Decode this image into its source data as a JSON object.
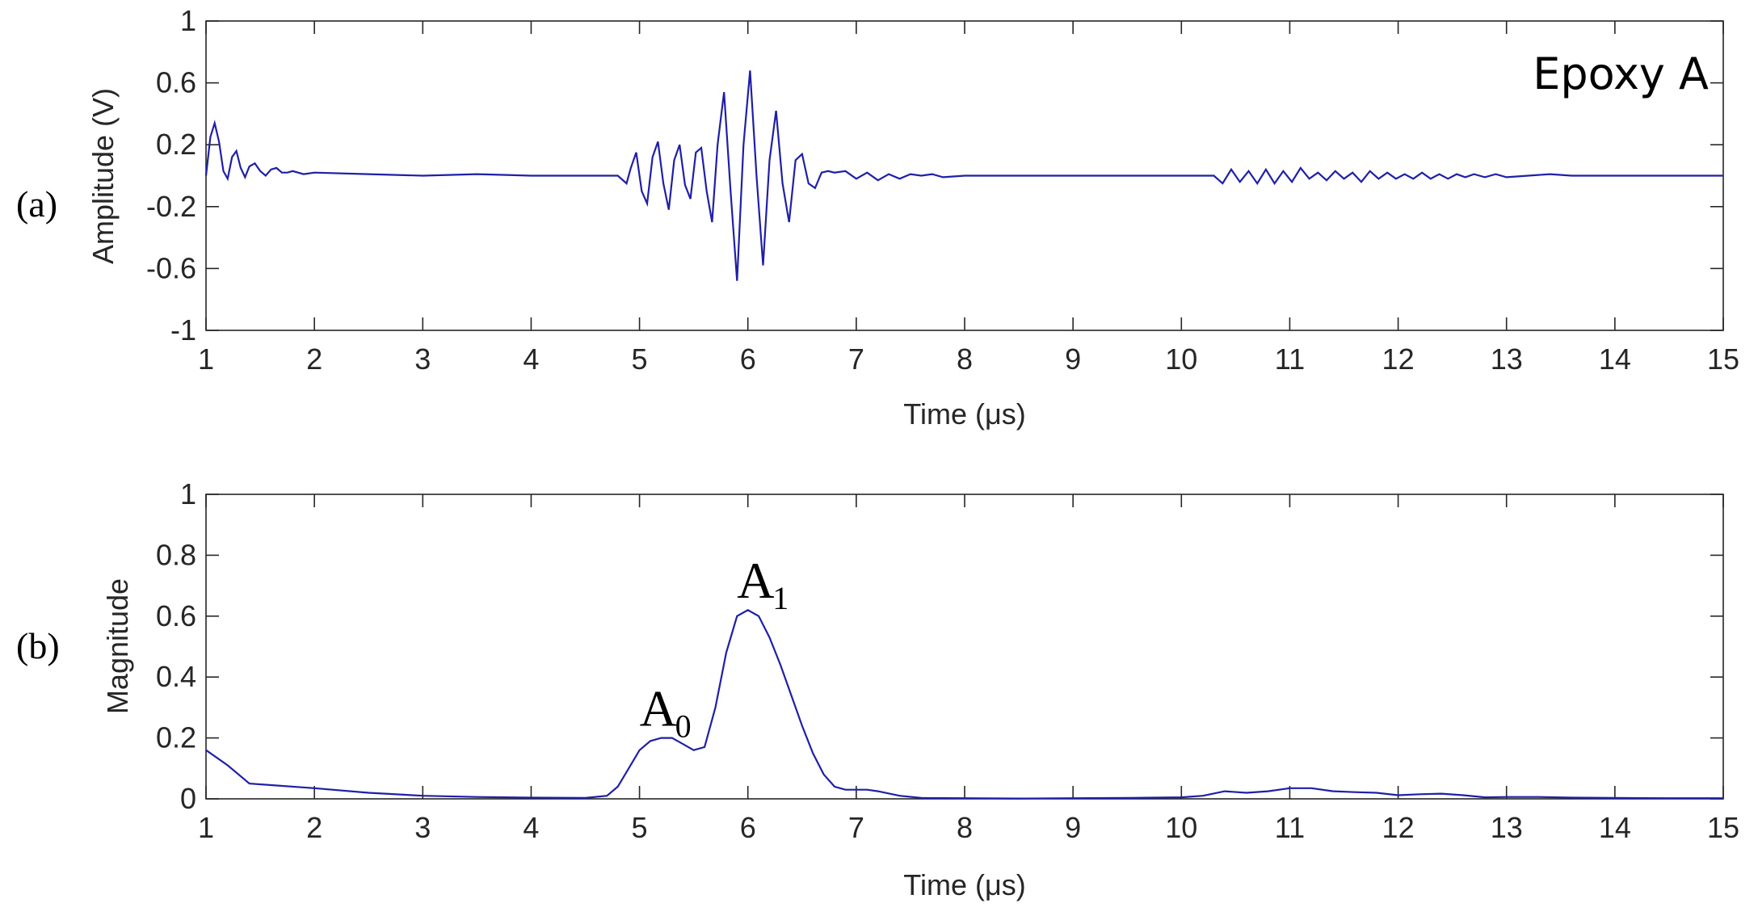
{
  "chart_data": [
    {
      "panel_label": "(a)",
      "type": "line",
      "xlabel": "Time (μs)",
      "ylabel": "Amplitude (V)",
      "xlim": [
        1,
        15
      ],
      "ylim": [
        -1,
        1
      ],
      "xticks": [
        1,
        2,
        3,
        4,
        5,
        6,
        7,
        8,
        9,
        10,
        11,
        12,
        13,
        14,
        15
      ],
      "yticks": [
        1,
        0.6,
        0.2,
        -0.2,
        -0.6,
        -1
      ],
      "ytick_labels": [
        "1",
        "0.6",
        "0.2",
        "-0.2",
        "-0.6",
        "-1"
      ],
      "annotation": "Epoxy A",
      "line_color": "#1f1fa8",
      "series": [
        {
          "x": [
            1.0,
            1.04,
            1.08,
            1.12,
            1.16,
            1.2,
            1.24,
            1.28,
            1.32,
            1.36,
            1.4,
            1.45,
            1.5,
            1.55,
            1.6,
            1.65,
            1.7,
            1.75,
            1.8,
            1.9,
            2.0,
            2.5,
            3.0,
            3.5,
            4.0,
            4.5,
            4.8,
            4.88,
            4.92,
            4.97,
            5.02,
            5.07,
            5.12,
            5.17,
            5.22,
            5.27,
            5.32,
            5.37,
            5.42,
            5.47,
            5.52,
            5.57,
            5.62,
            5.67,
            5.72,
            5.78,
            5.84,
            5.9,
            5.96,
            6.02,
            6.08,
            6.14,
            6.2,
            6.26,
            6.32,
            6.38,
            6.44,
            6.5,
            6.56,
            6.62,
            6.68,
            6.74,
            6.8,
            6.9,
            7.0,
            7.1,
            7.2,
            7.3,
            7.4,
            7.5,
            7.6,
            7.7,
            7.8,
            8.0,
            8.5,
            9.0,
            9.5,
            10.0,
            10.3,
            10.38,
            10.46,
            10.54,
            10.62,
            10.7,
            10.78,
            10.86,
            10.94,
            11.02,
            11.1,
            11.18,
            11.26,
            11.34,
            11.42,
            11.5,
            11.58,
            11.66,
            11.74,
            11.82,
            11.9,
            11.98,
            12.06,
            12.14,
            12.22,
            12.3,
            12.38,
            12.46,
            12.54,
            12.62,
            12.7,
            12.8,
            12.9,
            13.0,
            13.2,
            13.4,
            13.6,
            14.0,
            14.5,
            15.0
          ],
          "y": [
            0.0,
            0.25,
            0.34,
            0.22,
            0.03,
            -0.02,
            0.12,
            0.16,
            0.05,
            -0.01,
            0.06,
            0.08,
            0.03,
            0.0,
            0.04,
            0.05,
            0.02,
            0.02,
            0.03,
            0.01,
            0.02,
            0.01,
            0.0,
            0.01,
            0.0,
            0.0,
            0.0,
            -0.05,
            0.05,
            0.15,
            -0.1,
            -0.18,
            0.12,
            0.22,
            -0.05,
            -0.22,
            0.1,
            0.2,
            -0.06,
            -0.15,
            0.15,
            0.18,
            -0.1,
            -0.3,
            0.2,
            0.54,
            -0.1,
            -0.68,
            0.2,
            0.68,
            0.0,
            -0.58,
            0.1,
            0.42,
            -0.05,
            -0.3,
            0.1,
            0.14,
            -0.05,
            -0.08,
            0.02,
            0.03,
            0.02,
            0.03,
            -0.02,
            0.02,
            -0.03,
            0.01,
            -0.02,
            0.01,
            0.0,
            0.01,
            -0.01,
            0.0,
            0.0,
            0.0,
            0.0,
            0.0,
            0.0,
            -0.05,
            0.04,
            -0.04,
            0.03,
            -0.05,
            0.04,
            -0.05,
            0.03,
            -0.04,
            0.05,
            -0.02,
            0.02,
            -0.03,
            0.03,
            -0.02,
            0.02,
            -0.04,
            0.03,
            -0.02,
            0.02,
            -0.02,
            0.01,
            -0.02,
            0.02,
            -0.02,
            0.01,
            -0.02,
            0.01,
            -0.01,
            0.01,
            -0.01,
            0.01,
            -0.01,
            0.0,
            0.01,
            0.0,
            0.0,
            0.0,
            0.0
          ]
        }
      ]
    },
    {
      "panel_label": "(b)",
      "type": "line",
      "xlabel": "Time (μs)",
      "ylabel": "Magnitude",
      "xlim": [
        1,
        15
      ],
      "ylim": [
        0,
        1
      ],
      "xticks": [
        1,
        2,
        3,
        4,
        5,
        6,
        7,
        8,
        9,
        10,
        11,
        12,
        13,
        14,
        15
      ],
      "yticks": [
        1,
        0.8,
        0.6,
        0.4,
        0.2,
        0
      ],
      "ytick_labels": [
        "1",
        "0.8",
        "0.6",
        "0.4",
        "0.2",
        "0"
      ],
      "line_color": "#1f1fa8",
      "annotations": [
        {
          "main": "A",
          "sub": "0",
          "x": 5.0,
          "y": 0.24
        },
        {
          "main": "A",
          "sub": "1",
          "x": 5.9,
          "y": 0.66
        }
      ],
      "series": [
        {
          "x": [
            1.0,
            1.2,
            1.4,
            1.6,
            2.0,
            2.5,
            3.0,
            3.5,
            4.0,
            4.5,
            4.7,
            4.8,
            4.9,
            5.0,
            5.1,
            5.2,
            5.3,
            5.4,
            5.5,
            5.6,
            5.7,
            5.8,
            5.9,
            6.0,
            6.1,
            6.2,
            6.3,
            6.4,
            6.5,
            6.6,
            6.7,
            6.8,
            6.9,
            7.0,
            7.1,
            7.2,
            7.4,
            7.6,
            8.0,
            8.5,
            9.0,
            9.5,
            10.0,
            10.2,
            10.4,
            10.6,
            10.8,
            11.0,
            11.2,
            11.4,
            11.6,
            11.8,
            12.0,
            12.2,
            12.4,
            12.6,
            12.8,
            13.0,
            13.3,
            13.6,
            14.0,
            14.5,
            15.0
          ],
          "y": [
            0.16,
            0.11,
            0.05,
            0.045,
            0.035,
            0.02,
            0.01,
            0.006,
            0.004,
            0.003,
            0.01,
            0.04,
            0.1,
            0.16,
            0.19,
            0.2,
            0.2,
            0.18,
            0.16,
            0.17,
            0.3,
            0.48,
            0.6,
            0.62,
            0.6,
            0.53,
            0.44,
            0.34,
            0.24,
            0.15,
            0.08,
            0.04,
            0.03,
            0.03,
            0.03,
            0.025,
            0.01,
            0.003,
            0.002,
            0.001,
            0.002,
            0.003,
            0.005,
            0.01,
            0.025,
            0.02,
            0.025,
            0.035,
            0.035,
            0.025,
            0.022,
            0.02,
            0.012,
            0.015,
            0.017,
            0.012,
            0.005,
            0.006,
            0.006,
            0.004,
            0.003,
            0.002,
            0.002
          ]
        }
      ]
    }
  ]
}
